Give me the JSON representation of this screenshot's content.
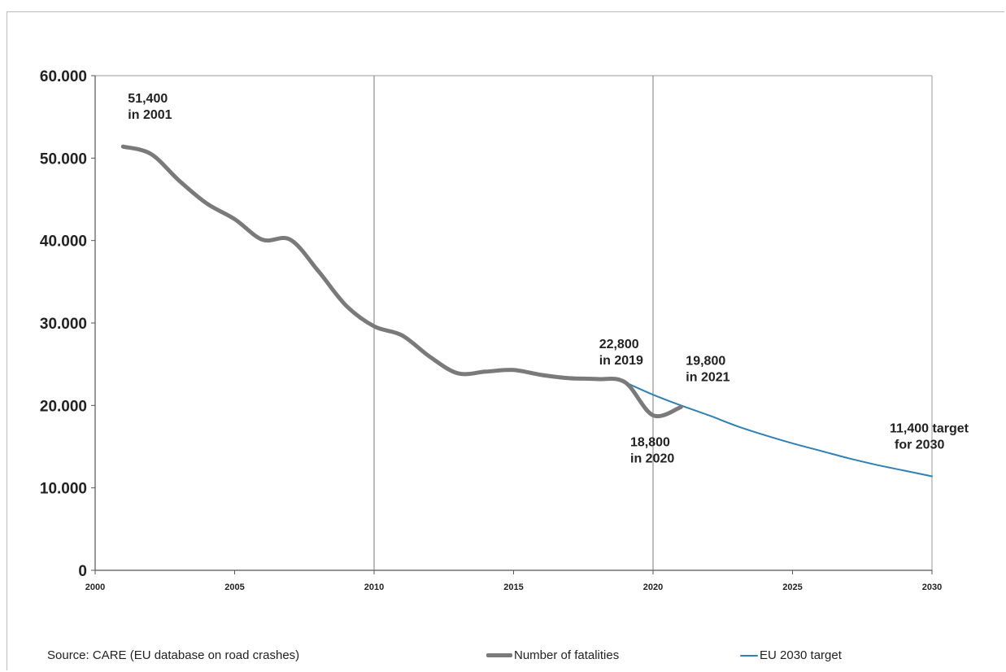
{
  "chart_data": {
    "type": "line",
    "title": "",
    "xlabel": "",
    "ylabel": "",
    "xlim": [
      2000,
      2030
    ],
    "ylim": [
      0,
      60000
    ],
    "x_ticks": [
      {
        "value": 2000,
        "label": "2000"
      },
      {
        "value": 2005,
        "label": "2005"
      },
      {
        "value": 2010,
        "label": "2010"
      },
      {
        "value": 2015,
        "label": "2015"
      },
      {
        "value": 2020,
        "label": "2020"
      },
      {
        "value": 2025,
        "label": "2025"
      },
      {
        "value": 2030,
        "label": "2030"
      }
    ],
    "y_ticks": [
      {
        "value": 0,
        "label": "0"
      },
      {
        "value": 10000,
        "label": "10.000"
      },
      {
        "value": 20000,
        "label": "20.000"
      },
      {
        "value": 30000,
        "label": "30.000"
      },
      {
        "value": 40000,
        "label": "40.000"
      },
      {
        "value": 50000,
        "label": "50.000"
      },
      {
        "value": 60000,
        "label": "60.000"
      }
    ],
    "vertical_reference_lines": [
      2010,
      2020
    ],
    "grid": false,
    "legend_position": "bottom",
    "series": [
      {
        "name": "Number of fatalities",
        "color": "#7a7a7a",
        "x": [
          2001,
          2002,
          2003,
          2004,
          2005,
          2006,
          2007,
          2008,
          2009,
          2010,
          2011,
          2012,
          2013,
          2014,
          2015,
          2016,
          2017,
          2018,
          2019,
          2020,
          2021
        ],
        "y": [
          51400,
          50500,
          47300,
          44500,
          42600,
          40100,
          40100,
          36300,
          32100,
          29600,
          28500,
          25900,
          23900,
          24100,
          24300,
          23700,
          23300,
          23200,
          22800,
          18800,
          19800
        ]
      },
      {
        "name": "EU 2030 target",
        "color": "#2f80b6",
        "x": [
          2019,
          2020,
          2021,
          2022,
          2023,
          2024,
          2025,
          2026,
          2027,
          2028,
          2029,
          2030
        ],
        "y": [
          22800,
          21300,
          20000,
          18800,
          17500,
          16400,
          15400,
          14500,
          13600,
          12800,
          12100,
          11400
        ]
      }
    ],
    "annotations": [
      {
        "line1": "51,400",
        "line2": "in 2001",
        "anchor": "above-right",
        "x": 2001,
        "y": 51400
      },
      {
        "line1": "22,800",
        "line2": "in 2019",
        "anchor": "above-left",
        "x": 2019,
        "y": 22800
      },
      {
        "line1": "19,800",
        "line2": "in 2021",
        "anchor": "above-right",
        "x": 2021,
        "y": 19800
      },
      {
        "line1": "18,800",
        "line2": "in 2020",
        "anchor": "below",
        "x": 2020,
        "y": 18800
      },
      {
        "line1": "11,400 target",
        "line2": "for 2030",
        "anchor": "above-left",
        "x": 2030,
        "y": 11400
      }
    ]
  },
  "footer": {
    "source": "Source: CARE (EU database on road crashes)"
  },
  "legend": {
    "fatalities_label": "Number of fatalities",
    "target_label": "EU 2030 target"
  }
}
